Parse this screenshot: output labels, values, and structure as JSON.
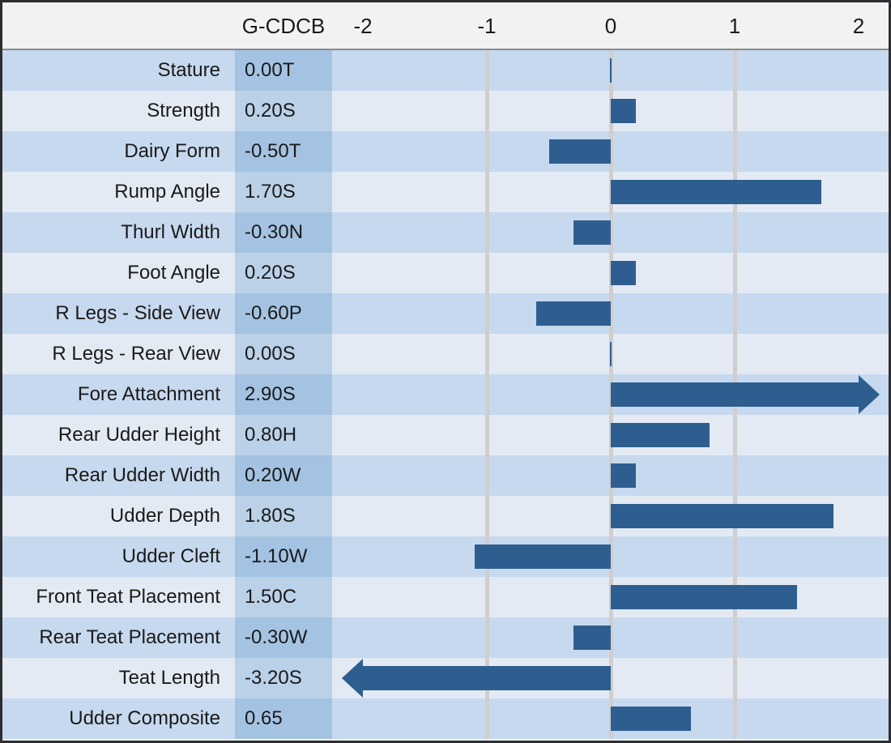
{
  "chart_data": {
    "type": "bar",
    "orientation": "horizontal",
    "title": "",
    "value_column_header": "G-CDCB",
    "axis_ticks": [
      "-2",
      "-1",
      "0",
      "1",
      "2"
    ],
    "axis_tick_values": [
      -2,
      -1,
      0,
      1,
      2
    ],
    "xlim": [
      -2,
      2
    ],
    "gridlines_at": [
      -1,
      0,
      1
    ],
    "overflow_style": "arrow-beyond-2",
    "rows": [
      {
        "label": "Stature",
        "value_text": "0.00T",
        "value": 0.0
      },
      {
        "label": "Strength",
        "value_text": "0.20S",
        "value": 0.2
      },
      {
        "label": "Dairy Form",
        "value_text": "-0.50T",
        "value": -0.5
      },
      {
        "label": "Rump Angle",
        "value_text": "1.70S",
        "value": 1.7
      },
      {
        "label": "Thurl Width",
        "value_text": "-0.30N",
        "value": -0.3
      },
      {
        "label": "Foot Angle",
        "value_text": "0.20S",
        "value": 0.2
      },
      {
        "label": "R Legs - Side View",
        "value_text": "-0.60P",
        "value": -0.6
      },
      {
        "label": "R Legs - Rear View",
        "value_text": "0.00S",
        "value": 0.0
      },
      {
        "label": "Fore Attachment",
        "value_text": "2.90S",
        "value": 2.9
      },
      {
        "label": "Rear Udder Height",
        "value_text": "0.80H",
        "value": 0.8
      },
      {
        "label": "Rear Udder Width",
        "value_text": "0.20W",
        "value": 0.2
      },
      {
        "label": "Udder Depth",
        "value_text": "1.80S",
        "value": 1.8
      },
      {
        "label": "Udder Cleft",
        "value_text": "-1.10W",
        "value": -1.1
      },
      {
        "label": "Front Teat Placement",
        "value_text": "1.50C",
        "value": 1.5
      },
      {
        "label": "Rear Teat Placement",
        "value_text": "-0.30W",
        "value": -0.3
      },
      {
        "label": "Teat Length",
        "value_text": "-3.20S",
        "value": -3.2
      },
      {
        "label": "Udder Composite",
        "value_text": "0.65",
        "value": 0.65
      }
    ]
  },
  "colors": {
    "bar": "#2e5e90",
    "row_dark": "#c6d9ee",
    "row_light": "#e3eaf4",
    "value_cell_dark": "#a4c3e2",
    "value_cell_light": "#bad1e8",
    "header_bg": "#f2f2f2",
    "gridline": "#d0cece",
    "border": "#2d2d32",
    "text": "#1a1a1a"
  }
}
